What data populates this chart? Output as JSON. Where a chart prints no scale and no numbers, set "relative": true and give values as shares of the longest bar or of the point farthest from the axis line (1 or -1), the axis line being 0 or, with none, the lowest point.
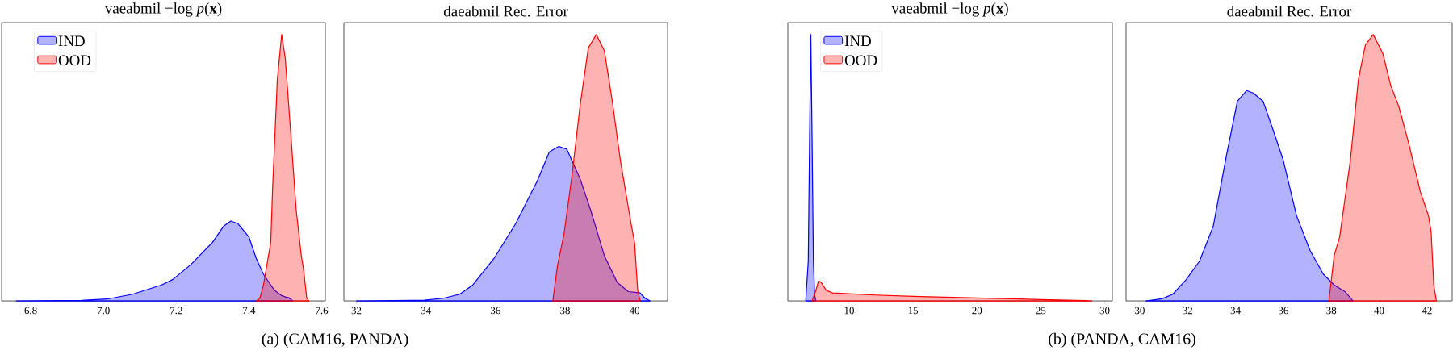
{
  "chart_data": [
    {
      "type": "area",
      "title": "vaeabmil −log *p*(**x**)",
      "relative": true,
      "legend": "top left",
      "xlim": [
        6.72,
        7.61
      ],
      "xticks": [
        6.8,
        {
          "value": 7.0,
          "label": "7.0"
        },
        7.2,
        7.4,
        7.6
      ],
      "annotations": [
        "(a) (CAM16, PANDA)"
      ],
      "series": [
        {
          "name": "IND",
          "color": "#0000ff",
          "x": [
            6.76,
            6.94,
            7.01,
            7.08,
            7.16,
            7.19,
            7.24,
            7.3,
            7.33,
            7.35,
            7.37,
            7.4,
            7.42,
            7.44,
            7.47,
            7.49,
            7.5,
            7.51,
            7.52
          ],
          "values": [
            0,
            0.002,
            0.007,
            0.025,
            0.06,
            0.08,
            0.136,
            0.22,
            0.28,
            0.3,
            0.29,
            0.24,
            0.16,
            0.1,
            0.04,
            0.02,
            0.015,
            0.012,
            0
          ]
        },
        {
          "name": "OOD",
          "color": "#ff0000",
          "x": [
            7.42,
            7.43,
            7.44,
            7.46,
            7.465,
            7.478,
            7.49,
            7.5,
            7.515,
            7.53,
            7.544,
            7.55,
            7.559,
            7.565
          ],
          "values": [
            0,
            0.01,
            0.06,
            0.22,
            0.42,
            0.83,
            1.0,
            0.91,
            0.63,
            0.34,
            0.17,
            0.12,
            0.01,
            0
          ]
        }
      ]
    },
    {
      "type": "area",
      "title": "daeabmil Rec. Error",
      "relative": true,
      "xlim": [
        31.64,
        40.95
      ],
      "xticks": [
        32,
        34,
        36,
        38,
        40
      ],
      "series": [
        {
          "color": "#0000ff",
          "x": [
            32.0,
            33.96,
            34.5,
            34.97,
            35.35,
            35.96,
            36.58,
            37.2,
            37.55,
            37.82,
            38.05,
            38.43,
            38.74,
            39.13,
            39.5,
            39.82,
            40.16,
            40.3,
            40.45
          ],
          "values": [
            0,
            0.003,
            0.01,
            0.025,
            0.06,
            0.16,
            0.29,
            0.45,
            0.56,
            0.58,
            0.57,
            0.46,
            0.34,
            0.17,
            0.07,
            0.035,
            0.03,
            0.01,
            0
          ]
        },
        {
          "color": "#ff0000",
          "x": [
            37.65,
            37.78,
            37.97,
            38.2,
            38.43,
            38.67,
            38.9,
            39.13,
            39.36,
            39.59,
            39.9,
            40.0,
            40.09,
            40.16
          ],
          "values": [
            0,
            0.13,
            0.25,
            0.47,
            0.73,
            0.95,
            1.0,
            0.94,
            0.75,
            0.53,
            0.29,
            0.22,
            0.04,
            0
          ]
        }
      ]
    },
    {
      "type": "area",
      "title": "vaeabmil −log *p*(**x**)",
      "relative": true,
      "legend": "top left",
      "xlim": [
        5.2,
        30.6
      ],
      "xticks": [
        10,
        15,
        20,
        25,
        30
      ],
      "annotations": [
        "(b) (PANDA, CAM16)"
      ],
      "series": [
        {
          "name": "IND",
          "color": "#0000ff",
          "x": [
            6.6,
            6.8,
            6.9,
            7.0,
            7.1,
            7.2,
            7.3,
            7.4
          ],
          "values": [
            0,
            0.15,
            0.6,
            1.0,
            0.6,
            0.15,
            0.02,
            0
          ]
        },
        {
          "name": "OOD",
          "color": "#ff0000",
          "x": [
            7.1,
            7.4,
            7.6,
            7.8,
            8.2,
            8.7,
            10,
            12,
            15,
            20,
            25,
            28.5,
            29
          ],
          "values": [
            0,
            0.04,
            0.075,
            0.07,
            0.04,
            0.03,
            0.027,
            0.022,
            0.017,
            0.011,
            0.005,
            0.001,
            0
          ]
        }
      ]
    },
    {
      "type": "area",
      "title": "daeabmil Rec. Error",
      "relative": true,
      "xlim": [
        29.43,
        43.05
      ],
      "xticks": [
        30,
        32,
        34,
        36,
        38,
        40,
        42
      ],
      "series": [
        {
          "color": "#0000ff",
          "x": [
            30.26,
            30.93,
            31.38,
            31.94,
            32.5,
            33.07,
            33.63,
            34.08,
            34.47,
            34.75,
            35.15,
            35.54,
            35.99,
            36.55,
            37.11,
            37.67,
            38.12,
            38.57,
            38.91
          ],
          "values": [
            0,
            0.008,
            0.025,
            0.08,
            0.15,
            0.28,
            0.55,
            0.75,
            0.79,
            0.78,
            0.75,
            0.65,
            0.53,
            0.32,
            0.19,
            0.1,
            0.06,
            0.035,
            0
          ]
        },
        {
          "color": "#ff0000",
          "x": [
            37.9,
            38.12,
            38.35,
            38.8,
            39.13,
            39.42,
            39.75,
            40.15,
            40.48,
            40.82,
            41.21,
            41.72,
            42.06,
            42.17,
            42.28,
            42.39
          ],
          "values": [
            0,
            0.17,
            0.24,
            0.53,
            0.83,
            0.96,
            1.0,
            0.93,
            0.81,
            0.73,
            0.6,
            0.41,
            0.32,
            0.26,
            0.06,
            0
          ]
        }
      ]
    }
  ]
}
